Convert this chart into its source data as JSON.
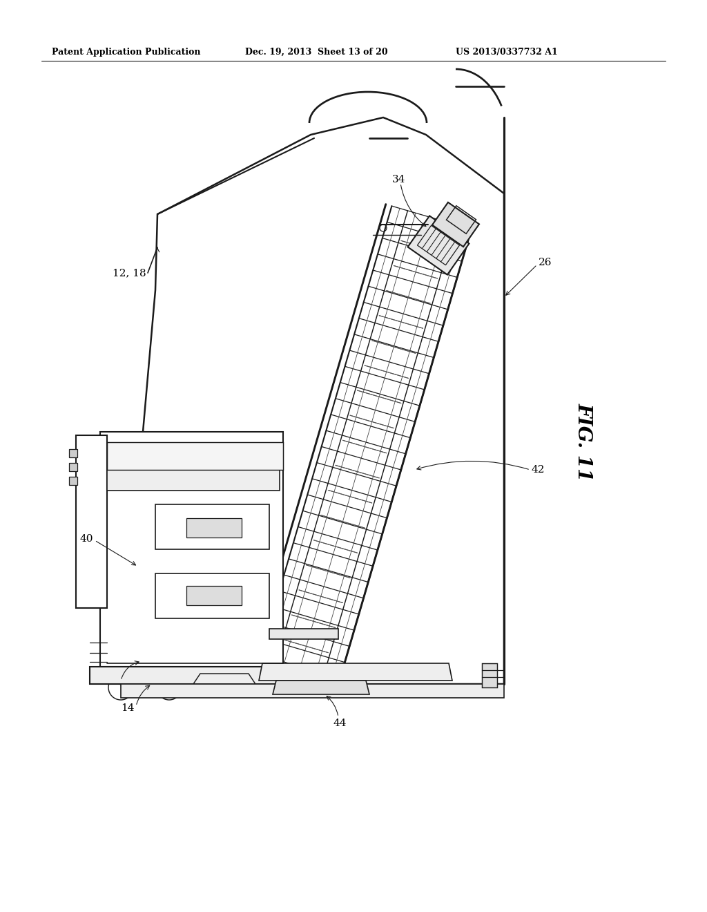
{
  "title_left": "Patent Application Publication",
  "title_mid": "Dec. 19, 2013  Sheet 13 of 20",
  "title_right": "US 2013/0337732 A1",
  "fig_label": "FIG. 11",
  "background": "#ffffff",
  "line_color": "#1a1a1a",
  "line_width": 1.5
}
